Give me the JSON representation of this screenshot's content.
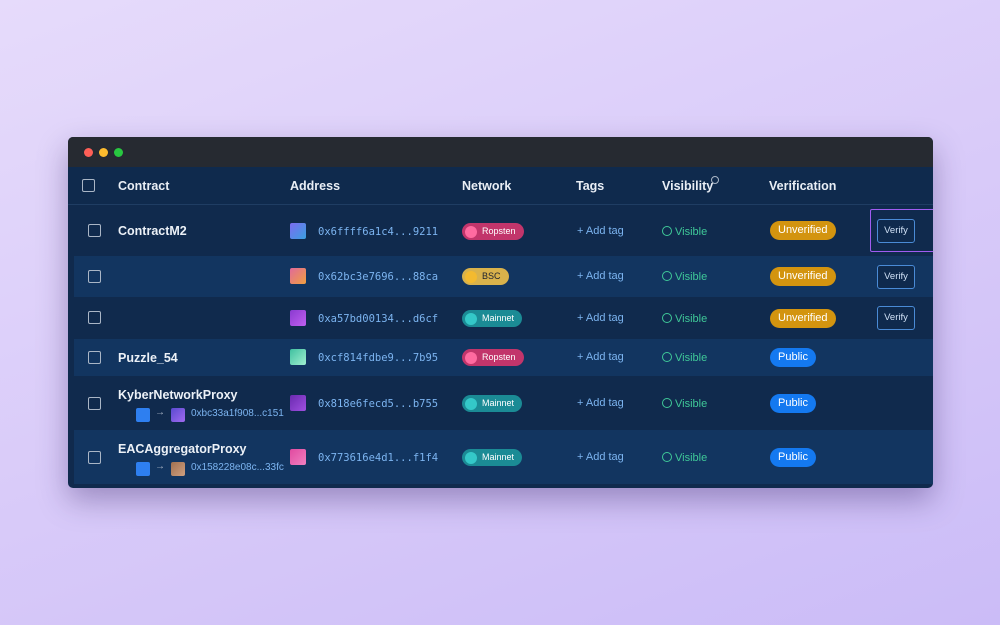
{
  "header": {
    "contract": "Contract",
    "address": "Address",
    "network": "Network",
    "tags": "Tags",
    "visibility": "Visibility",
    "verification": "Verification"
  },
  "rows": [
    {
      "contract": "ContractM2",
      "address": "0x6ffff6a1c4...9211",
      "network": "Ropsten",
      "tag": "+ Add tag",
      "visibility": "Visible",
      "verification": "Unverified",
      "verify": "Verify"
    },
    {
      "contract": "",
      "address": "0x62bc3e7696...88ca",
      "network": "BSC",
      "tag": "+ Add tag",
      "visibility": "Visible",
      "verification": "Unverified",
      "verify": "Verify"
    },
    {
      "contract": "",
      "address": "0xa57bd00134...d6cf",
      "network": "Mainnet",
      "tag": "+ Add tag",
      "visibility": "Visible",
      "verification": "Unverified",
      "verify": "Verify"
    },
    {
      "contract": "Puzzle_54",
      "address": "0xcf814fdbe9...7b95",
      "network": "Ropsten",
      "tag": "+ Add tag",
      "visibility": "Visible",
      "verification": "Public"
    },
    {
      "contract": "KyberNetworkProxy",
      "address": "0x818e6fecd5...b755",
      "network": "Mainnet",
      "tag": "+ Add tag",
      "visibility": "Visible",
      "verification": "Public",
      "proxy_address": "0xbc33a1f908...c151"
    },
    {
      "contract": "EACAggregatorProxy",
      "address": "0x773616e4d1...f1f4",
      "network": "Mainnet",
      "tag": "+ Add tag",
      "visibility": "Visible",
      "verification": "Public",
      "proxy_address": "0x158228e08c...33fc"
    }
  ],
  "colors": {
    "window_bg": "#102a4d",
    "accent": "#7cb4f0",
    "unverified": "#d3940f",
    "public": "#1479f0",
    "visible": "#3fc898",
    "highlight": "#a05cf0"
  }
}
